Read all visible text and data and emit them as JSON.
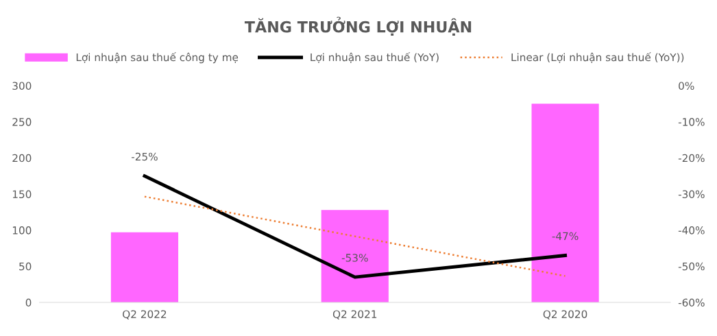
{
  "chart_data": {
    "type": "bar",
    "title": "TĂNG TRƯỞNG LỢI NHUẬN",
    "categories": [
      "Q2 2022",
      "Q2 2021",
      "Q2 2020"
    ],
    "series": [
      {
        "name": "Lợi nhuận sau thuế công ty mẹ",
        "color": "#ff66ff",
        "values": [
          97,
          128,
          275
        ]
      },
      {
        "name": "Lợi nhuận sau thuế (YoY)",
        "type": "line",
        "axis": "y2",
        "color": "#000000",
        "values": [
          -25,
          -53,
          -47
        ],
        "value_labels": [
          "-25%",
          "-53%",
          "-47%"
        ],
        "line_style": "solid"
      },
      {
        "name": "Linear (Lợi nhuận sau thuế (YoY))",
        "type": "line",
        "axis": "y2",
        "color": "#ed7d31",
        "values": [
          -30.7,
          -41.7,
          -52.7
        ],
        "line_style": "dotted"
      }
    ],
    "ylim": [
      0,
      300
    ],
    "yticks": [
      0,
      50,
      100,
      150,
      200,
      250,
      300
    ],
    "y2lim": [
      -60,
      0
    ],
    "y2ticks": [
      {
        "value": -60,
        "label": "-60%"
      },
      {
        "value": -50,
        "label": "-50%"
      },
      {
        "value": -40,
        "label": "-40%"
      },
      {
        "value": -30,
        "label": "-30%"
      },
      {
        "value": -20,
        "label": "-20%"
      },
      {
        "value": -10,
        "label": "-10%"
      },
      {
        "value": 0,
        "label": "0%"
      }
    ],
    "grid": false,
    "legend": "top"
  }
}
